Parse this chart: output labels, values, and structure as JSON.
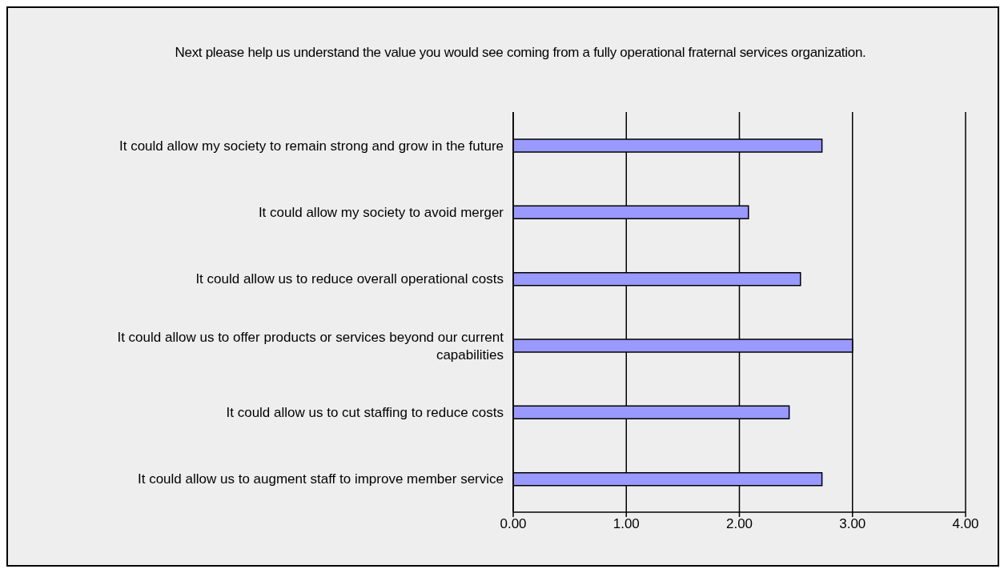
{
  "chart_data": {
    "type": "bar",
    "orientation": "horizontal",
    "title": "Next please help us understand the value you would see coming from a fully operational fraternal services organization.",
    "categories": [
      "It could allow my society to remain strong and grow in the future",
      "It could allow my society to avoid merger",
      "It could allow us to reduce overall operational costs",
      "It could allow us to offer products or services beyond our current capabilities",
      "It could allow us to cut staffing to reduce costs",
      "It could allow us to augment staff to improve member service"
    ],
    "values": [
      2.73,
      2.08,
      2.54,
      3.0,
      2.44,
      2.73
    ],
    "color": "#9999ff",
    "xlim": [
      0,
      4
    ],
    "xticks": [
      {
        "value": 0,
        "label": "0.00"
      },
      {
        "value": 1,
        "label": "1.00"
      },
      {
        "value": 2,
        "label": "2.00"
      },
      {
        "value": 3,
        "label": "3.00"
      },
      {
        "value": 4,
        "label": "4.00"
      }
    ],
    "grid": "x"
  }
}
